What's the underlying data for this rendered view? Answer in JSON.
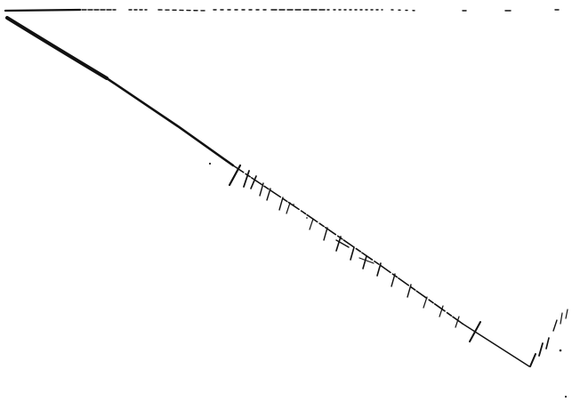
{
  "drawing": {
    "ink_color": "#111111",
    "paper_color": "#ffffff",
    "parts": [
      "top-edge-line",
      "main-diagonal-line",
      "hatch-marks",
      "stray-dots",
      "corner-scratch-marks"
    ]
  }
}
